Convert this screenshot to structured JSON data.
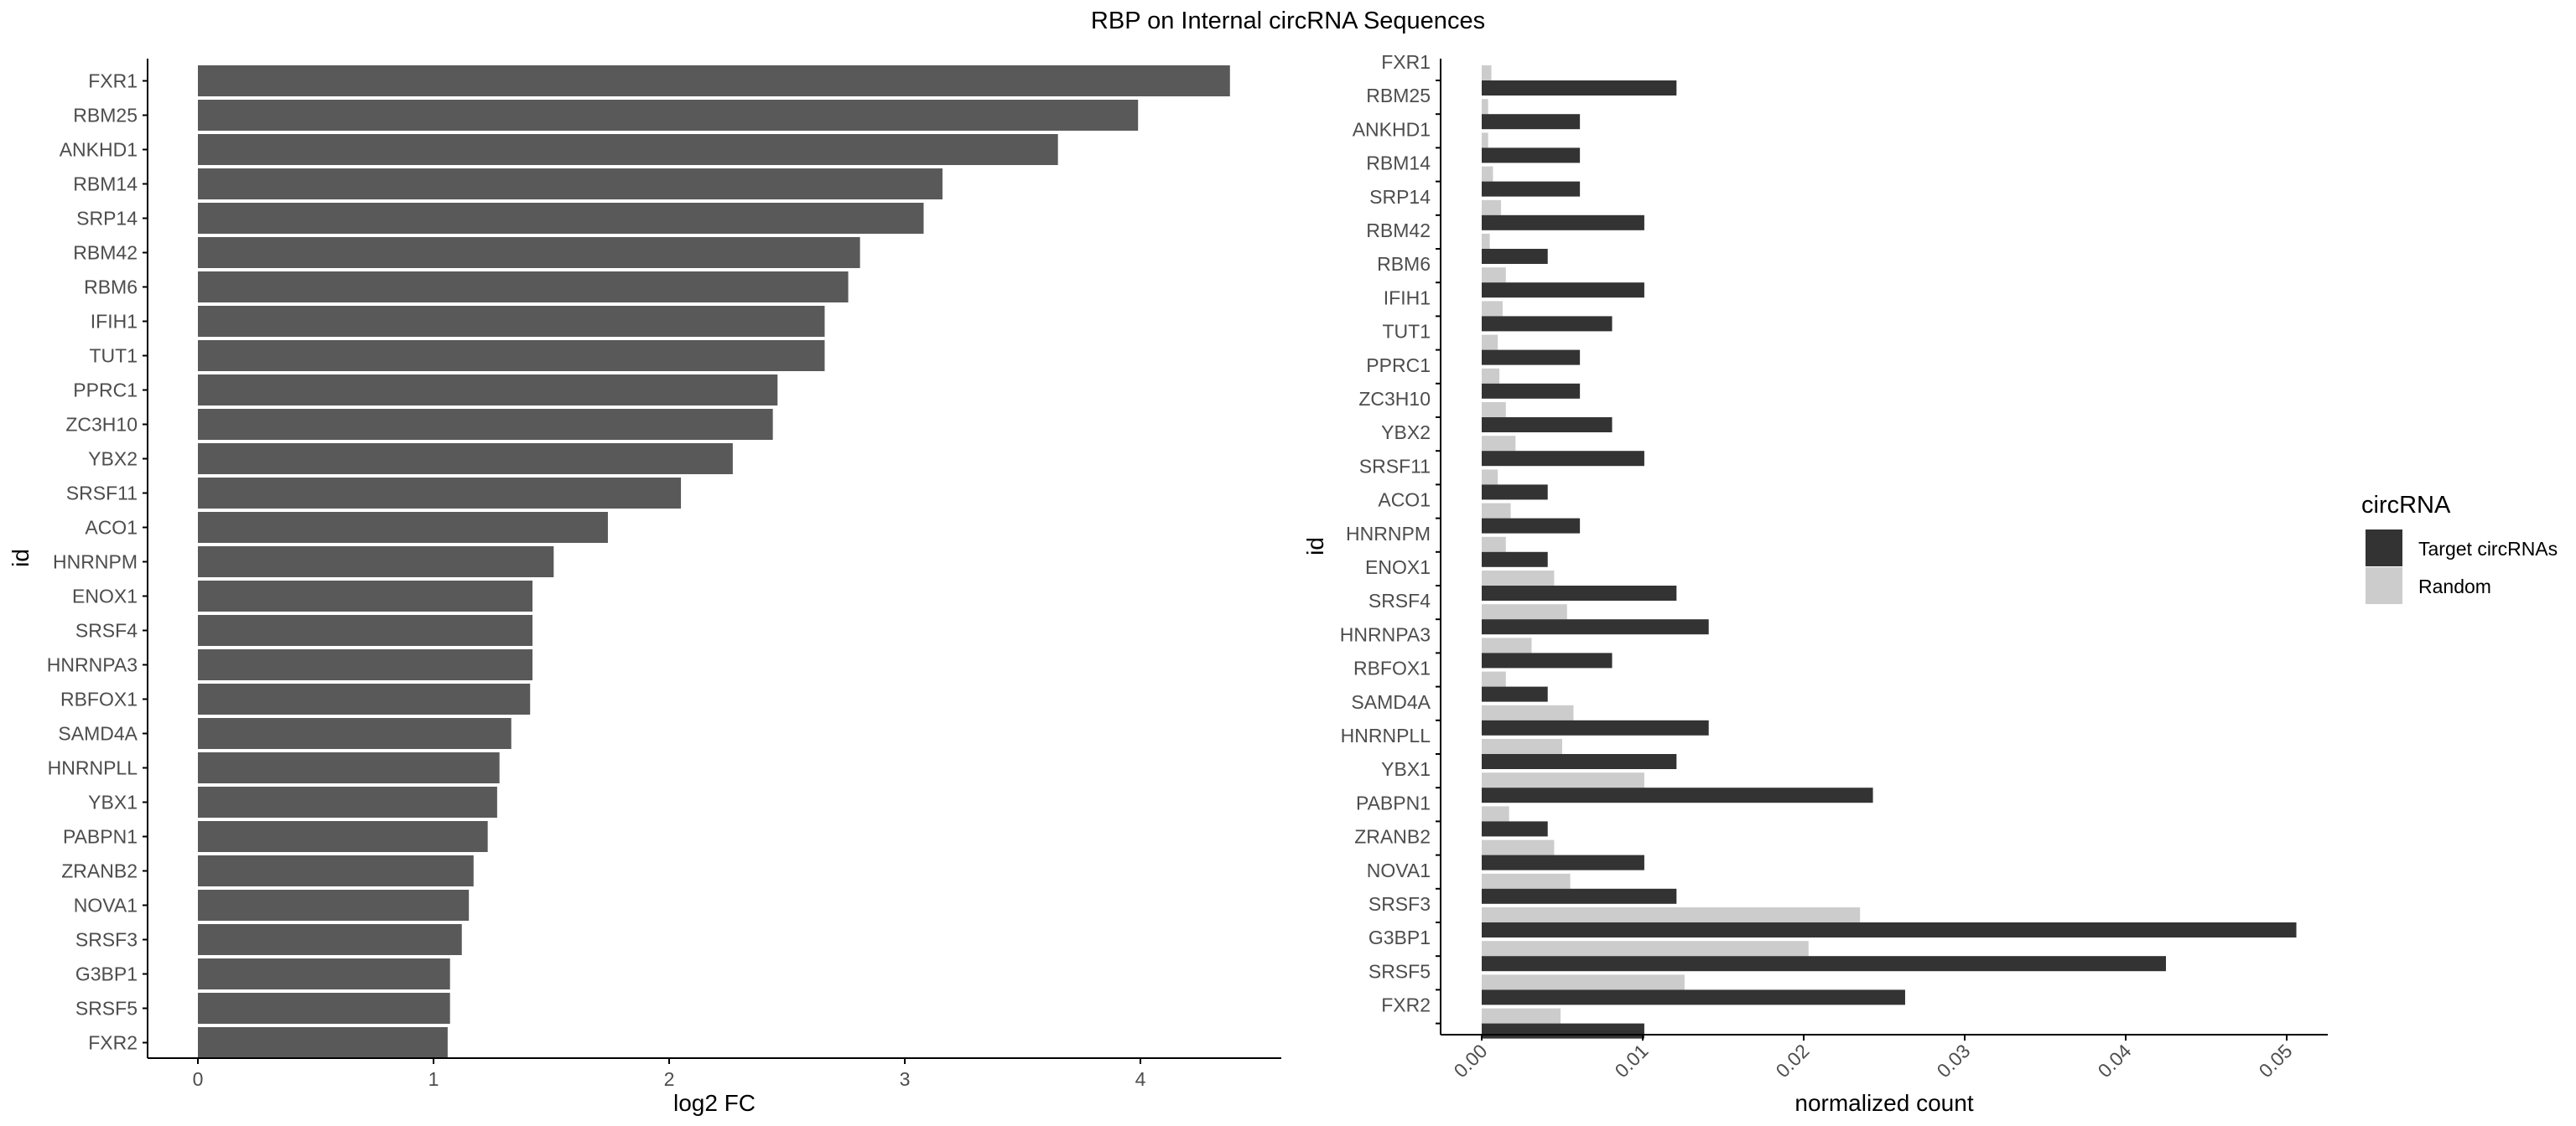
{
  "figure": {
    "title": "RBP on Internal circRNA Sequences"
  },
  "colors": {
    "bar_fc": "#595959",
    "target": "#333333",
    "random": "#cccccc",
    "axis": "#000000",
    "tick_text": "#4d4d4d"
  },
  "chart_data": [
    {
      "type": "bar",
      "orientation": "horizontal",
      "title": "",
      "xlabel": "log2 FC",
      "ylabel": "id",
      "xlim": [
        -0.21,
        4.6
      ],
      "xticks": [
        0,
        1,
        2,
        3,
        4
      ],
      "grid": false,
      "categories": [
        "FXR1",
        "RBM25",
        "ANKHD1",
        "RBM14",
        "SRP14",
        "RBM42",
        "RBM6",
        "IFIH1",
        "TUT1",
        "PPRC1",
        "ZC3H10",
        "YBX2",
        "SRSF11",
        "ACO1",
        "HNRNPM",
        "ENOX1",
        "SRSF4",
        "HNRNPA3",
        "RBFOX1",
        "SAMD4A",
        "HNRNPLL",
        "YBX1",
        "PABPN1",
        "ZRANB2",
        "NOVA1",
        "SRSF3",
        "G3BP1",
        "SRSF5",
        "FXR2"
      ],
      "values": [
        4.38,
        3.99,
        3.65,
        3.16,
        3.08,
        2.81,
        2.76,
        2.66,
        2.66,
        2.46,
        2.44,
        2.27,
        2.05,
        1.74,
        1.51,
        1.42,
        1.42,
        1.42,
        1.41,
        1.33,
        1.28,
        1.27,
        1.23,
        1.17,
        1.15,
        1.12,
        1.07,
        1.07,
        1.06
      ]
    },
    {
      "type": "bar",
      "orientation": "horizontal",
      "grouped": true,
      "title": "",
      "xlabel": "normalized count",
      "ylabel": "id",
      "xlim": [
        -0.0025,
        0.054
      ],
      "xticks": [
        0.0,
        0.01,
        0.02,
        0.03,
        0.04,
        0.05
      ],
      "xtick_labels": [
        "0.00",
        "0.01",
        "0.02",
        "0.03",
        "0.04",
        "0.05"
      ],
      "grid": false,
      "legend": {
        "title": "circRNA",
        "position": "right"
      },
      "categories": [
        "FXR1",
        "RBM25",
        "ANKHD1",
        "RBM14",
        "SRP14",
        "RBM42",
        "RBM6",
        "IFIH1",
        "TUT1",
        "PPRC1",
        "ZC3H10",
        "YBX2",
        "SRSF11",
        "ACO1",
        "HNRNPM",
        "ENOX1",
        "SRSF4",
        "HNRNPA3",
        "RBFOX1",
        "SAMD4A",
        "HNRNPLL",
        "YBX1",
        "PABPN1",
        "ZRANB2",
        "NOVA1",
        "SRSF3",
        "G3BP1",
        "SRSF5",
        "FXR2"
      ],
      "series": [
        {
          "name": "Target circRNAs",
          "color": "#333333",
          "values": [
            0.0121,
            0.0061,
            0.0061,
            0.0061,
            0.0101,
            0.0041,
            0.0101,
            0.0081,
            0.0061,
            0.0061,
            0.0081,
            0.0101,
            0.0041,
            0.0061,
            0.0041,
            0.0121,
            0.0141,
            0.0081,
            0.0041,
            0.0141,
            0.0121,
            0.0243,
            0.0041,
            0.0101,
            0.0121,
            0.0506,
            0.0425,
            0.0263,
            0.0101
          ]
        },
        {
          "name": "Random",
          "color": "#cccccc",
          "values": [
            0.0006,
            0.0004,
            0.0004,
            0.0007,
            0.0012,
            0.0005,
            0.0015,
            0.0013,
            0.001,
            0.0011,
            0.0015,
            0.0021,
            0.001,
            0.0018,
            0.0015,
            0.0045,
            0.0053,
            0.0031,
            0.0015,
            0.0057,
            0.005,
            0.0101,
            0.0017,
            0.0045,
            0.0055,
            0.0235,
            0.0203,
            0.0126,
            0.0049
          ]
        }
      ]
    }
  ]
}
